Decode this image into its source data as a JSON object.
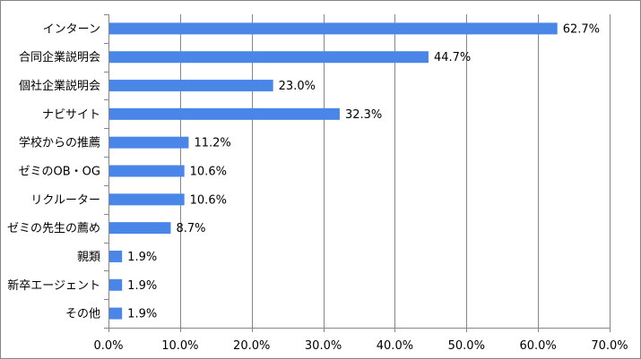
{
  "chart_data": {
    "type": "bar",
    "orientation": "horizontal",
    "categories": [
      "インターン",
      "合同企業説明会",
      "個社企業説明会",
      "ナビサイト",
      "学校からの推薦",
      "ゼミのOB・OG",
      "リクルーター",
      "ゼミの先生の薦め",
      "親類",
      "新卒エージェント",
      "その他"
    ],
    "values": [
      62.7,
      44.7,
      23.0,
      32.3,
      11.2,
      10.6,
      10.6,
      8.7,
      1.9,
      1.9,
      1.9
    ],
    "value_labels": [
      "62.7%",
      "44.7%",
      "23.0%",
      "32.3%",
      "11.2%",
      "10.6%",
      "10.6%",
      "8.7%",
      "1.9%",
      "1.9%",
      "1.9%"
    ],
    "xlim": [
      0,
      70
    ],
    "xticks": [
      0,
      10,
      20,
      30,
      40,
      50,
      60,
      70
    ],
    "xtick_labels": [
      "0.0%",
      "10.0%",
      "20.0%",
      "30.0%",
      "40.0%",
      "50.0%",
      "60.0%",
      "70.0%"
    ],
    "grid": "vertical",
    "legend": "none",
    "bar_color": "#4a86e8",
    "grid_color": "#868686"
  }
}
